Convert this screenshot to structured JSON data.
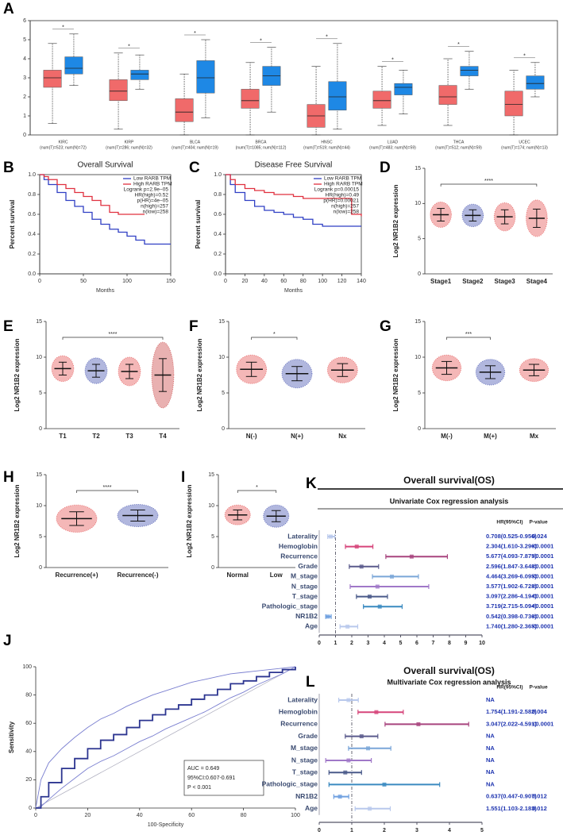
{
  "chart_data": [
    {
      "type": "box",
      "panel": "A",
      "categories": [
        "KIRC",
        "KIRP",
        "BLCA",
        "BRCA",
        "HNSC",
        "LUAD",
        "THCA",
        "UCEC"
      ],
      "sublabels": [
        "(num(T)=523; num(N)=72)",
        "(num(T)=286; num(N)=32)",
        "(num(T)=404; num(N)=19)",
        "(num(T)=1085; num(N)=112)",
        "(num(T)=519; num(N)=44)",
        "(num(T)=483; num(N)=59)",
        "(num(T)=512; num(N)=59)",
        "(num(T)=174; num(N)=13)"
      ],
      "significance": [
        "*",
        "*",
        "*",
        "*",
        "*",
        "*",
        "*",
        "*"
      ],
      "tumor_color": "#f06a6a",
      "normal_color": "#1e88e5",
      "tumor": [
        {
          "low": 0.6,
          "q1": 2.5,
          "median": 3.0,
          "q3": 3.4,
          "high": 4.8
        },
        {
          "low": 0.3,
          "q1": 1.8,
          "median": 2.3,
          "q3": 2.9,
          "high": 4.3
        },
        {
          "low": 0.0,
          "q1": 0.7,
          "median": 1.2,
          "q3": 1.9,
          "high": 3.2
        },
        {
          "low": 0.0,
          "q1": 1.4,
          "median": 1.8,
          "q3": 2.4,
          "high": 3.8
        },
        {
          "low": 0.0,
          "q1": 0.4,
          "median": 1.0,
          "q3": 1.6,
          "high": 3.6
        },
        {
          "low": 0.5,
          "q1": 1.4,
          "median": 1.8,
          "q3": 2.3,
          "high": 3.6
        },
        {
          "low": 0.5,
          "q1": 1.6,
          "median": 2.0,
          "q3": 2.6,
          "high": 4.0
        },
        {
          "low": 0.0,
          "q1": 1.0,
          "median": 1.6,
          "q3": 2.3,
          "high": 3.4
        }
      ],
      "normal": [
        {
          "low": 2.6,
          "q1": 3.2,
          "median": 3.5,
          "q3": 4.1,
          "high": 5.3
        },
        {
          "low": 2.4,
          "q1": 2.9,
          "median": 3.2,
          "q3": 3.4,
          "high": 4.2
        },
        {
          "low": 0.9,
          "q1": 2.2,
          "median": 3.0,
          "q3": 3.9,
          "high": 5.0
        },
        {
          "low": 1.2,
          "q1": 2.6,
          "median": 3.1,
          "q3": 3.6,
          "high": 4.6
        },
        {
          "low": 0.3,
          "q1": 1.3,
          "median": 2.0,
          "q3": 2.8,
          "high": 4.8
        },
        {
          "low": 1.1,
          "q1": 2.1,
          "median": 2.5,
          "q3": 2.7,
          "high": 3.4
        },
        {
          "low": 2.4,
          "q1": 3.1,
          "median": 3.4,
          "q3": 3.6,
          "high": 4.4
        },
        {
          "low": 2.0,
          "q1": 2.4,
          "median": 2.7,
          "q3": 3.1,
          "high": 3.8
        }
      ],
      "ylim": [
        0,
        6
      ],
      "yticks": [
        0,
        1,
        2,
        3,
        4,
        5,
        6
      ]
    },
    {
      "type": "survival",
      "panel": "B",
      "title": "Overall Survival",
      "x_label": "Months",
      "y_label": "Percent survival",
      "xlim": [
        0,
        150
      ],
      "xticks": [
        0,
        50,
        100,
        150
      ],
      "ylim": [
        0,
        1
      ],
      "yticks": [
        {
          "value": 0,
          "label": "0.0"
        },
        0.2,
        0.4,
        0.6,
        0.8,
        {
          "value": 1,
          "label": "1.0"
        }
      ],
      "series": [
        {
          "name": "Low RARB TPM",
          "color": "#2f3fc4",
          "x": [
            0,
            5,
            10,
            20,
            30,
            40,
            50,
            60,
            70,
            80,
            90,
            100,
            110,
            120,
            130,
            150
          ],
          "values": [
            1,
            0.95,
            0.9,
            0.82,
            0.74,
            0.68,
            0.62,
            0.55,
            0.5,
            0.45,
            0.42,
            0.38,
            0.34,
            0.3,
            0.3,
            0.3
          ]
        },
        {
          "name": "High RARB TPM",
          "color": "#e0303f",
          "x": [
            0,
            5,
            10,
            20,
            30,
            40,
            50,
            60,
            70,
            80,
            90,
            100,
            110,
            120
          ],
          "values": [
            1,
            0.98,
            0.95,
            0.9,
            0.86,
            0.82,
            0.78,
            0.74,
            0.69,
            0.62,
            0.6,
            0.6,
            0.6,
            0.6
          ]
        }
      ],
      "annotations": [
        "Logrank p=2.9e−05",
        "HR(high)=0.52",
        "p(HR)=4e−05",
        "n(high)=257",
        "n(low)=258"
      ]
    },
    {
      "type": "survival",
      "panel": "C",
      "title": "Disease Free Survival",
      "x_label": "Months",
      "y_label": "Percent survival",
      "xlim": [
        0,
        140
      ],
      "xticks": [
        0,
        20,
        40,
        60,
        80,
        100,
        120,
        140
      ],
      "ylim": [
        0,
        1
      ],
      "yticks": [
        {
          "value": 0,
          "label": "0.0"
        },
        0.2,
        0.4,
        0.6,
        0.8,
        {
          "value": 1,
          "label": "1.0"
        }
      ],
      "series": [
        {
          "name": "Low RARB TPM",
          "color": "#2f3fc4",
          "x": [
            0,
            5,
            10,
            20,
            30,
            40,
            50,
            60,
            70,
            80,
            90,
            100,
            110,
            120,
            130,
            140
          ],
          "values": [
            1,
            0.9,
            0.82,
            0.74,
            0.68,
            0.64,
            0.62,
            0.6,
            0.57,
            0.55,
            0.5,
            0.48,
            0.48,
            0.48,
            0.48,
            0.48
          ]
        },
        {
          "name": "High RARB TPM",
          "color": "#e0303f",
          "x": [
            0,
            5,
            10,
            20,
            30,
            40,
            50,
            60,
            70,
            80,
            90,
            100,
            110,
            120,
            130,
            140
          ],
          "values": [
            1,
            0.95,
            0.9,
            0.86,
            0.84,
            0.82,
            0.8,
            0.8,
            0.78,
            0.76,
            0.76,
            0.76,
            0.76,
            0.76,
            0.6,
            0.58
          ]
        }
      ],
      "annotations": [
        "Logrank p=0.00015",
        "HR(high)=0.49",
        "p(HR)=0.00021",
        "n(high)=257",
        "n(low)=258"
      ]
    },
    {
      "type": "dot",
      "panel": "D",
      "y_label": "Log2 NR1B2 expression",
      "categories": [
        "Stage1",
        "Stage2",
        "Stage3",
        "Stage4"
      ],
      "values": [
        8.4,
        8.3,
        8.1,
        7.9
      ],
      "sd": [
        0.9,
        0.8,
        1.0,
        1.3
      ],
      "colors": [
        "#e03030",
        "#2030a0",
        "#e03030",
        "#e03030"
      ],
      "significance": "****",
      "comparison": [
        "Stage1",
        "Stage4"
      ],
      "ylim": [
        0,
        15
      ],
      "yticks": [
        0,
        5,
        10,
        15
      ]
    },
    {
      "type": "dot",
      "panel": "E",
      "y_label": "Log2 NR1B2 expression",
      "categories": [
        "T1",
        "T2",
        "T3",
        "T4"
      ],
      "values": [
        8.4,
        8.1,
        8.0,
        7.5
      ],
      "sd": [
        0.9,
        0.9,
        1.0,
        2.3
      ],
      "colors": [
        "#e03030",
        "#2030a0",
        "#e03030",
        "#c02020"
      ],
      "significance": "****",
      "comparison": [
        "T1",
        "T4"
      ],
      "ylim": [
        0,
        15
      ],
      "yticks": [
        0,
        5,
        10,
        15
      ]
    },
    {
      "type": "dot",
      "panel": "F",
      "y_label": "Log2 NR1B2 expression",
      "categories": [
        "N(-)",
        "N(+)",
        "Nx"
      ],
      "values": [
        8.3,
        7.7,
        8.2
      ],
      "sd": [
        1.0,
        1.0,
        0.9
      ],
      "colors": [
        "#e03030",
        "#2030a0",
        "#e03030"
      ],
      "significance": "*",
      "comparison": [
        "N(-)",
        "N(+)"
      ],
      "ylim": [
        0,
        15
      ],
      "yticks": [
        0,
        5,
        10,
        15
      ]
    },
    {
      "type": "dot",
      "panel": "G",
      "y_label": "Log2 NR1B2 expression",
      "categories": [
        "M(-)",
        "M(+)",
        "Mx"
      ],
      "values": [
        8.5,
        7.9,
        8.2
      ],
      "sd": [
        0.9,
        0.9,
        0.8
      ],
      "colors": [
        "#e03030",
        "#2030a0",
        "#e03030"
      ],
      "significance": "***",
      "comparison": [
        "M(-)",
        "M(+)"
      ],
      "ylim": [
        0,
        15
      ],
      "yticks": [
        0,
        5,
        10,
        15
      ]
    },
    {
      "type": "dot",
      "panel": "H",
      "y_label": "Log2 NR1B2 expression",
      "categories": [
        "Recurrence(+)",
        "Recurrence(-)"
      ],
      "values": [
        7.9,
        8.4
      ],
      "sd": [
        1.1,
        0.9
      ],
      "colors": [
        "#e03030",
        "#2030a0"
      ],
      "significance": "****",
      "comparison": [
        "Recurrence(+)",
        "Recurrence(-)"
      ],
      "ylim": [
        0,
        15
      ],
      "yticks": [
        0,
        5,
        10,
        15
      ]
    },
    {
      "type": "dot",
      "panel": "I",
      "y_label": "Log2 NR1B2 expression",
      "categories": [
        "Normal",
        "Low"
      ],
      "values": [
        8.5,
        8.3
      ],
      "sd": [
        0.8,
        0.9
      ],
      "colors": [
        "#e03030",
        "#2030a0"
      ],
      "significance": "*",
      "comparison": [
        "Normal",
        "Low"
      ],
      "ylim": [
        0,
        15
      ],
      "yticks": [
        0,
        5,
        10,
        15
      ]
    },
    {
      "type": "forest",
      "panel": "K",
      "title": "Overall survival(OS)",
      "subtitle": "Univariate Cox regression analysis",
      "hr_header": "HR(95%CI)",
      "p_header": "P-value",
      "ref": 1,
      "xlim": [
        0,
        10
      ],
      "xticks": [
        0,
        1,
        2,
        3,
        4,
        5,
        6,
        7,
        8,
        9,
        10
      ],
      "rows": [
        {
          "name": "Laterality",
          "hr": 0.708,
          "lo": 0.525,
          "hi": 0.956,
          "hr_label": "0.708(0.525-0.956)",
          "p_label": "0.024",
          "color": "#b8c8ec"
        },
        {
          "name": "Hemoglobin",
          "hr": 2.304,
          "lo": 1.61,
          "hi": 3.296,
          "hr_label": "2.304(1.610-3.296)",
          "p_label": "<0.0001",
          "color": "#d6457a"
        },
        {
          "name": "Recurrence",
          "hr": 5.677,
          "lo": 4.093,
          "hi": 7.875,
          "hr_label": "5.677(4.093-7.875)",
          "p_label": "<0.0001",
          "color": "#a8447e"
        },
        {
          "name": "Grade",
          "hr": 2.596,
          "lo": 1.847,
          "hi": 3.648,
          "hr_label": "2.596(1.847-3.648)",
          "p_label": "<0.0001",
          "color": "#5a5a8c"
        },
        {
          "name": "M_stage",
          "hr": 4.464,
          "lo": 3.269,
          "hi": 6.095,
          "hr_label": "4.464(3.269-6.095)",
          "p_label": "<0.0001",
          "color": "#7aa6d8"
        },
        {
          "name": "N_stage",
          "hr": 3.577,
          "lo": 1.902,
          "hi": 6.728,
          "hr_label": "3.577(1.902-6.728)",
          "p_label": "<0.0001",
          "color": "#a078c8"
        },
        {
          "name": "T_stage",
          "hr": 3.097,
          "lo": 2.286,
          "hi": 4.194,
          "hr_label": "3.097(2.286-4.194)",
          "p_label": "<0.0001",
          "color": "#4a5a8a"
        },
        {
          "name": "Pathologic_stage",
          "hr": 3.719,
          "lo": 2.715,
          "hi": 5.094,
          "hr_label": "3.719(2.715-5.094)",
          "p_label": "<0.0001",
          "color": "#3a8ac0"
        },
        {
          "name": "NR1B2",
          "hr": 0.542,
          "lo": 0.398,
          "hi": 0.736,
          "hr_label": "0.542(0.398-0.736)",
          "p_label": "<0.0001",
          "color": "#6fa0e0"
        },
        {
          "name": "Age",
          "hr": 1.74,
          "lo": 1.28,
          "hi": 2.365,
          "hr_label": "1.740(1.280-2.365)",
          "p_label": "<0.0001",
          "color": "#b8c8ec"
        }
      ]
    },
    {
      "type": "roc",
      "panel": "J",
      "x_label": "100-Specificity",
      "y_label": "Sensitivity",
      "xlim": [
        0,
        100
      ],
      "xticks": [
        0,
        20,
        40,
        60,
        80,
        100
      ],
      "ylim": [
        0,
        100
      ],
      "yticks": [
        0,
        20,
        40,
        60,
        80,
        100
      ],
      "color": "#2c3590",
      "ci_color": "#7a7fd0",
      "x": [
        0,
        2,
        5,
        10,
        15,
        20,
        25,
        30,
        35,
        40,
        45,
        50,
        55,
        60,
        65,
        70,
        75,
        80,
        85,
        90,
        95,
        100
      ],
      "values": [
        0,
        8,
        18,
        28,
        35,
        42,
        48,
        52,
        57,
        62,
        66,
        70,
        73,
        77,
        80,
        84,
        88,
        90,
        93,
        96,
        98,
        100
      ],
      "upper": [
        0,
        20,
        32,
        42,
        50,
        57,
        63,
        67,
        72,
        76,
        80,
        83,
        86,
        89,
        91,
        93,
        95,
        96,
        97,
        98,
        99,
        100
      ],
      "lower": [
        0,
        1,
        6,
        14,
        21,
        28,
        33,
        37,
        42,
        47,
        51,
        56,
        60,
        64,
        68,
        73,
        78,
        82,
        87,
        91,
        95,
        100
      ],
      "annotations": [
        "AUC = 0.649",
        "95%CI:0.607-0.691",
        "P < 0.001"
      ]
    },
    {
      "type": "forest",
      "panel": "L",
      "title": "Overall survival(OS)",
      "subtitle": "Multivariate Cox regression analysis",
      "hr_header": "HR(95%CI)",
      "p_header": "P-value",
      "ref": 1,
      "xlim": [
        0,
        5
      ],
      "xticks": [
        0,
        1,
        2,
        3,
        4,
        5
      ],
      "rows": [
        {
          "name": "Laterality",
          "hr": 0.9,
          "lo": 0.6,
          "hi": 1.2,
          "hr_label": "NA",
          "color": "#b8c8ec"
        },
        {
          "name": "Hemoglobin",
          "hr": 1.754,
          "lo": 1.191,
          "hi": 2.582,
          "hr_label": "1.754(1.191-2.582)",
          "p_label": "0.004",
          "color": "#d6457a"
        },
        {
          "name": "Recurrence",
          "hr": 3.047,
          "lo": 2.022,
          "hi": 4.591,
          "hr_label": "3.047(2.022-4.591)",
          "p_label": "<0.0001",
          "color": "#a8447e"
        },
        {
          "name": "Grade",
          "hr": 1.3,
          "lo": 0.8,
          "hi": 1.8,
          "hr_label": "NA",
          "color": "#5a5a8c"
        },
        {
          "name": "M_stage",
          "hr": 1.5,
          "lo": 0.9,
          "hi": 2.2,
          "hr_label": "NA",
          "color": "#7aa6d8"
        },
        {
          "name": "N_stage",
          "hr": 0.9,
          "lo": 0.2,
          "hi": 1.6,
          "hr_label": "NA",
          "color": "#a078c8"
        },
        {
          "name": "T_stage",
          "hr": 0.8,
          "lo": 0.3,
          "hi": 1.3,
          "hr_label": "NA",
          "color": "#4a5a8a"
        },
        {
          "name": "Pathologic_stage",
          "hr": 2.0,
          "lo": 0.3,
          "hi": 3.7,
          "hr_label": "NA",
          "color": "#3a8ac0"
        },
        {
          "name": "NR1B2",
          "hr": 0.637,
          "lo": 0.447,
          "hi": 0.907,
          "hr_label": "0.637(0.447-0.907)",
          "p_label": "0.012",
          "color": "#6fa0e0"
        },
        {
          "name": "Age",
          "hr": 1.551,
          "lo": 1.103,
          "hi": 2.183,
          "hr_label": "1.551(1.103-2.183)",
          "p_label": "0.012",
          "color": "#b8c8ec"
        }
      ]
    }
  ]
}
